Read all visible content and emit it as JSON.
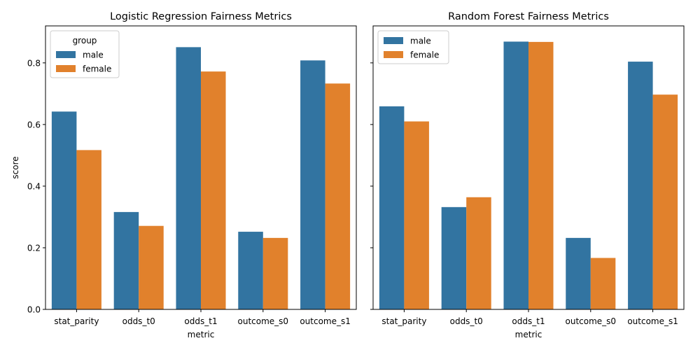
{
  "colors": {
    "male": "#3274a1",
    "female": "#e1812c",
    "axis": "#000000",
    "background": "#ffffff"
  },
  "chart_data": [
    {
      "type": "bar",
      "title": "Logistic Regression Fairness Metrics",
      "xlabel": "metric",
      "ylabel": "score",
      "categories": [
        "stat_parity",
        "odds_t0",
        "odds_t1",
        "outcome_s0",
        "outcome_s1"
      ],
      "series": [
        {
          "name": "male",
          "values": [
            0.642,
            0.316,
            0.851,
            0.252,
            0.808
          ]
        },
        {
          "name": "female",
          "values": [
            0.517,
            0.271,
            0.772,
            0.232,
            0.733
          ]
        }
      ],
      "ylim": [
        0,
        0.92
      ],
      "yticks": [
        0.0,
        0.2,
        0.4,
        0.6,
        0.8
      ],
      "ytick_labels": [
        "0.0",
        "0.2",
        "0.4",
        "0.6",
        "0.8"
      ],
      "grid": false,
      "legend": {
        "title": "group",
        "placement": "top-left"
      }
    },
    {
      "type": "bar",
      "title": "Random Forest Fairness Metrics",
      "xlabel": "metric",
      "ylabel": "",
      "categories": [
        "stat_parity",
        "odds_t0",
        "odds_t1",
        "outcome_s0",
        "outcome_s1"
      ],
      "series": [
        {
          "name": "male",
          "values": [
            0.659,
            0.332,
            0.869,
            0.232,
            0.804
          ]
        },
        {
          "name": "female",
          "values": [
            0.61,
            0.364,
            0.868,
            0.167,
            0.697
          ]
        }
      ],
      "ylim": [
        0,
        0.92
      ],
      "yticks": [
        0.0,
        0.2,
        0.4,
        0.6,
        0.8
      ],
      "ytick_labels": [
        "",
        "",
        "",
        "",
        ""
      ],
      "grid": false,
      "legend": {
        "title": "",
        "placement": "top-left"
      }
    }
  ]
}
